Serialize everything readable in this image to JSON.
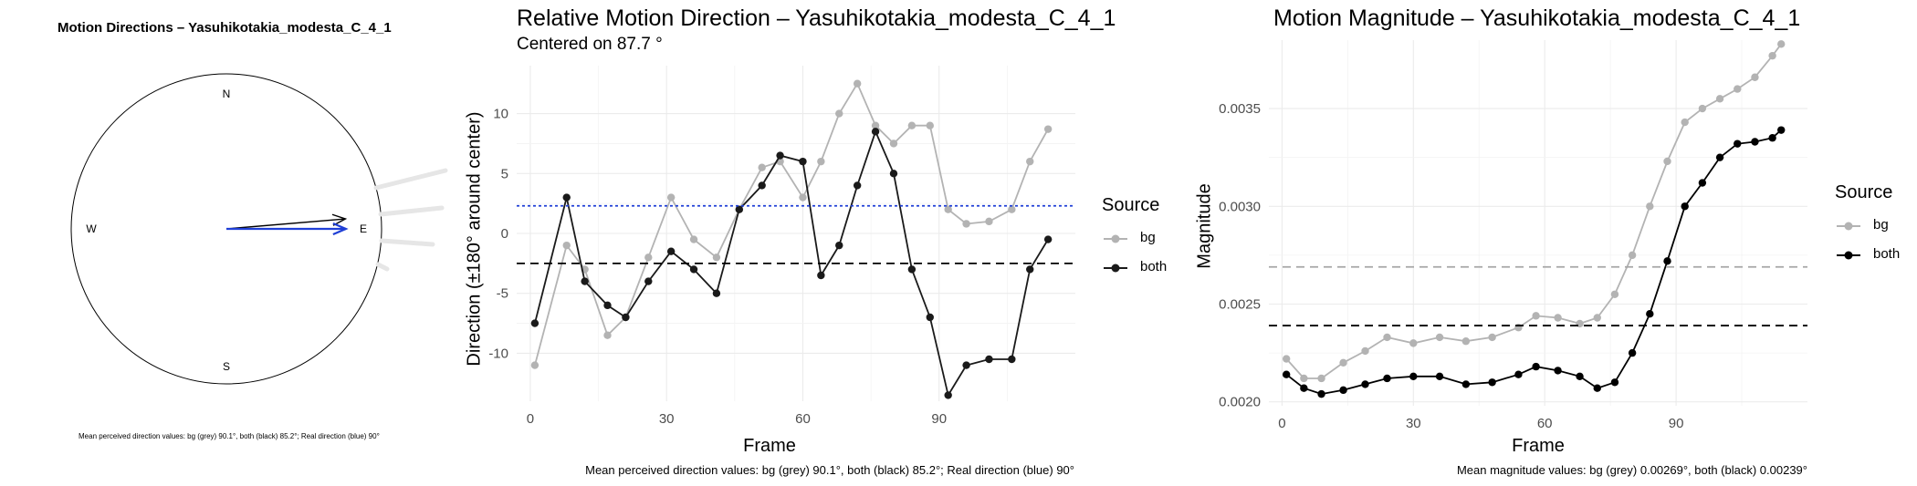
{
  "compass": {
    "title": "Motion Directions – Yasuhikotakia_modesta_C_4_1",
    "labels": {
      "n": "N",
      "s": "S",
      "e": "E",
      "w": "W"
    },
    "caption": "Mean perceived direction values: bg (grey) 90.1°, both (black) 85.2°; Real direction (blue) 90°",
    "arrows": [
      {
        "name": "bg",
        "angle_deg": 90.1,
        "color": "#aaaaaa"
      },
      {
        "name": "both",
        "angle_deg": 85.2,
        "color": "#000000"
      },
      {
        "name": "real",
        "angle_deg": 90,
        "color": "#1f3fd6"
      }
    ]
  },
  "direction_panel": {
    "title": "Relative Motion Direction – Yasuhikotakia_modesta_C_4_1",
    "subtitle": "Centered on  87.7 °",
    "xlabel": "Frame",
    "ylabel": "Direction (±180° around center)",
    "caption": "Mean perceived direction values: bg (grey) 90.1°, both (black) 85.2°; Real direction (blue) 90°",
    "legend_title": "Source"
  },
  "magnitude_panel": {
    "title": "Motion Magnitude – Yasuhikotakia_modesta_C_4_1",
    "xlabel": "Frame",
    "ylabel": "Magnitude",
    "caption": "Mean magnitude values: bg (grey) 0.00269°, both (black) 0.00239°",
    "legend_title": "Source"
  },
  "legend": {
    "bg": "bg",
    "both": "both"
  },
  "chart_data": [
    {
      "type": "line",
      "title": "Relative Motion Direction – Yasuhikotakia_modesta_C_4_1",
      "xlabel": "Frame",
      "ylabel": "Direction (±180° around center)",
      "xlim": [
        -3,
        120
      ],
      "ylim": [
        -14,
        14
      ],
      "xticks": [
        0,
        30,
        60,
        90
      ],
      "yticks": [
        -10,
        -5,
        0,
        5,
        10
      ],
      "grid": true,
      "legend_position": "right",
      "x": [
        1,
        8,
        12,
        17,
        21,
        26,
        31,
        36,
        41,
        46,
        51,
        55,
        60,
        64,
        68,
        72,
        76,
        80,
        84,
        88,
        92,
        96,
        101,
        106,
        110,
        114
      ],
      "series": [
        {
          "name": "bg",
          "color": "#b3b3b3",
          "values": [
            -11,
            -1,
            -3,
            -8.5,
            -7,
            -2,
            3,
            -0.5,
            -2,
            2,
            5.5,
            6,
            3,
            6,
            10,
            12.5,
            9,
            7.5,
            9,
            9,
            2,
            0.8,
            1,
            2,
            6,
            8.7
          ]
        },
        {
          "name": "both",
          "color": "#1a1a1a",
          "values": [
            -7.5,
            3,
            -4,
            -6,
            -7,
            -4,
            -1.5,
            -3,
            -5,
            2,
            4,
            6.5,
            6,
            -3.5,
            -1,
            4,
            8.5,
            5,
            -3,
            -7,
            -13.5,
            -11,
            -10.5,
            -10.5,
            -3,
            -0.5
          ]
        }
      ],
      "hlines": [
        {
          "name": "real_direction",
          "y": 2.3,
          "color": "#1f3fd6",
          "style": "dotted"
        },
        {
          "name": "mean_both",
          "y": -2.5,
          "color": "#000000",
          "style": "dashed"
        }
      ]
    },
    {
      "type": "line",
      "title": "Motion Magnitude – Yasuhikotakia_modesta_C_4_1",
      "xlabel": "Frame",
      "ylabel": "Magnitude",
      "xlim": [
        -3,
        120
      ],
      "ylim": [
        0.00198,
        0.00385
      ],
      "xticks": [
        0,
        30,
        60,
        90
      ],
      "yticks": [
        0.002,
        0.0025,
        0.003,
        0.0035
      ],
      "ytick_labels": [
        "0.0020",
        "0.0025",
        "0.0030",
        "0.0035"
      ],
      "grid": true,
      "legend_position": "right",
      "x": [
        1,
        5,
        9,
        14,
        19,
        24,
        30,
        36,
        42,
        48,
        54,
        58,
        63,
        68,
        72,
        76,
        80,
        84,
        88,
        92,
        96,
        100,
        104,
        108,
        112,
        114
      ],
      "series": [
        {
          "name": "bg",
          "color": "#b3b3b3",
          "values": [
            0.00222,
            0.00212,
            0.00212,
            0.0022,
            0.00226,
            0.00233,
            0.0023,
            0.00233,
            0.00231,
            0.00233,
            0.00238,
            0.00244,
            0.00243,
            0.0024,
            0.00243,
            0.00255,
            0.00275,
            0.003,
            0.00323,
            0.00343,
            0.0035,
            0.00355,
            0.0036,
            0.00366,
            0.00377,
            0.00383
          ]
        },
        {
          "name": "both",
          "color": "#000000",
          "values": [
            0.00214,
            0.00207,
            0.00204,
            0.00206,
            0.00209,
            0.00212,
            0.00213,
            0.00213,
            0.00209,
            0.0021,
            0.00214,
            0.00218,
            0.00216,
            0.00213,
            0.00207,
            0.0021,
            0.00225,
            0.00245,
            0.00272,
            0.003,
            0.00312,
            0.00325,
            0.00332,
            0.00333,
            0.00335,
            0.00339
          ]
        }
      ],
      "hlines": [
        {
          "name": "mean_bg",
          "y": 0.00269,
          "color": "#a6a6a6",
          "style": "dashed"
        },
        {
          "name": "mean_both",
          "y": 0.00239,
          "color": "#000000",
          "style": "dashed"
        }
      ]
    }
  ]
}
